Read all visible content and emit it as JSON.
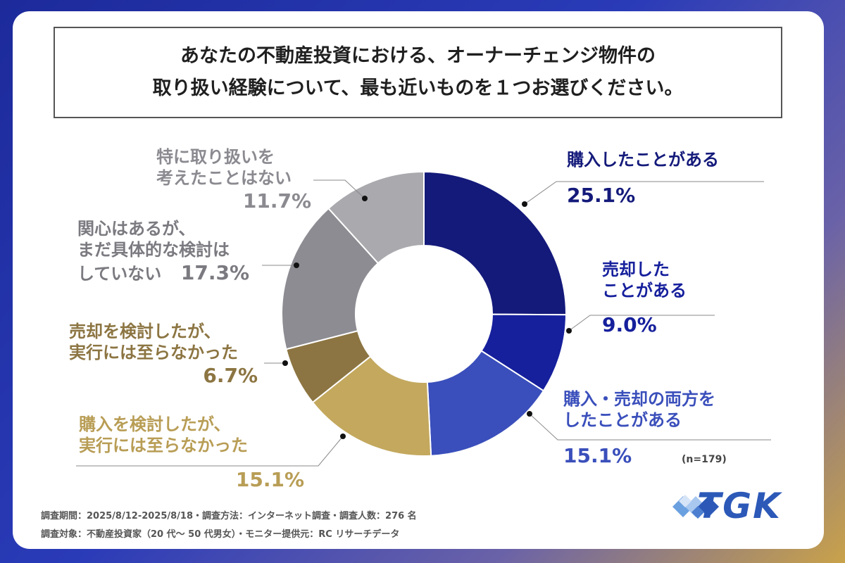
{
  "title_lines": [
    "あなたの不動産投資における、オーナーチェンジ物件の",
    "取り扱い経験について、最も近いものを１つお選びください。"
  ],
  "chart_data": {
    "type": "pie",
    "style": "donut",
    "n_label": "(n=179)",
    "slices": [
      {
        "label": "購入したことがある",
        "label_lines": [
          "購入したことがある"
        ],
        "value": 25.1,
        "value_label": "25.1%",
        "color": "#141a7a"
      },
      {
        "label": "売却したことがある",
        "label_lines": [
          "売却した",
          "ことがある"
        ],
        "value": 9.0,
        "value_label": "9.0%",
        "color": "#16209c"
      },
      {
        "label": "購入・売却の両方をしたことがある",
        "label_lines": [
          "購入・売却の両方を",
          "したことがある"
        ],
        "value": 15.1,
        "value_label": "15.1%",
        "color": "#3a4fbb"
      },
      {
        "label": "購入を検討したが、実行には至らなかった",
        "label_lines": [
          "購入を検討したが、",
          "実行には至らなかった"
        ],
        "value": 15.1,
        "value_label": "15.1%",
        "color": "#c3a85e"
      },
      {
        "label": "売却を検討したが、実行には至らなかった",
        "label_lines": [
          "売却を検討したが、",
          "実行には至らなかった"
        ],
        "value": 6.7,
        "value_label": "6.7%",
        "color": "#8c7542"
      },
      {
        "label": "関心はあるが、まだ具体的な検討はしていない",
        "label_lines": [
          "関心はあるが、",
          "まだ具体的な検討は",
          "していない"
        ],
        "value": 17.3,
        "value_label": "17.3%",
        "color": "#8c8c92"
      },
      {
        "label": "特に取り扱いを考えたことはない",
        "label_lines": [
          "特に取り扱いを",
          "考えたことはない"
        ],
        "value": 11.7,
        "value_label": "11.7%",
        "color": "#a9a9ae"
      }
    ]
  },
  "footer": {
    "line1": "調査期間：2025/8/12-2025/8/18・調査方法：インターネット調査・調査人数：276 名",
    "line2": "調査対象：不動産投資家（20 代〜 50 代男女）・モニター提供元：RC リサーチデータ"
  },
  "logo": {
    "text": "TGK",
    "color": "#2c59b8"
  }
}
